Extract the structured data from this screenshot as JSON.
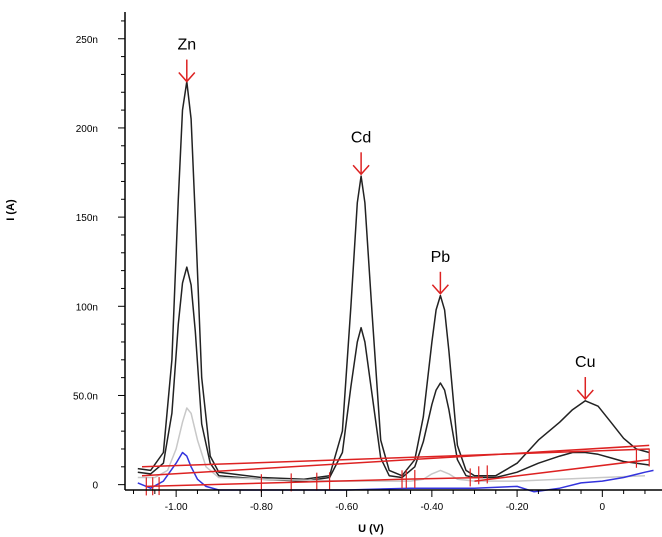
{
  "chart_data": {
    "type": "line",
    "xlabel": "U (V)",
    "ylabel": "I (A)",
    "xlim": [
      -1.12,
      0.14
    ],
    "ylim": [
      -3,
      265
    ],
    "x_ticks": [
      {
        "value": -1.0,
        "label": "-1.00"
      },
      {
        "value": -0.8,
        "label": "-0.80"
      },
      {
        "value": -0.6,
        "label": "-0.60"
      },
      {
        "value": -0.4,
        "label": "-0.40"
      },
      {
        "value": -0.2,
        "label": "-0.20"
      },
      {
        "value": 0.0,
        "label": "0"
      }
    ],
    "y_ticks": [
      {
        "value": 0,
        "label": "0"
      },
      {
        "value": 50,
        "label": "50.0n"
      },
      {
        "value": 100,
        "label": "100n"
      },
      {
        "value": 150,
        "label": "150n"
      },
      {
        "value": 200,
        "label": "200n"
      },
      {
        "value": 250,
        "label": "250n"
      }
    ],
    "grid": false,
    "peaks": [
      {
        "label": "Zn",
        "x": -0.975,
        "y": 226
      },
      {
        "label": "Cd",
        "x": -0.566,
        "y": 174
      },
      {
        "label": "Pb",
        "x": -0.38,
        "y": 107
      },
      {
        "label": "Cu",
        "x": -0.04,
        "y": 48
      }
    ],
    "series": [
      {
        "color": "#222222",
        "x": [
          -1.09,
          -1.06,
          -1.03,
          -1.01,
          -0.995,
          -0.985,
          -0.975,
          -0.965,
          -0.955,
          -0.94,
          -0.92,
          -0.9,
          -0.8,
          -0.7,
          -0.64,
          -0.61,
          -0.59,
          -0.575,
          -0.566,
          -0.557,
          -0.54,
          -0.52,
          -0.5,
          -0.47,
          -0.44,
          -0.42,
          -0.4,
          -0.39,
          -0.38,
          -0.37,
          -0.36,
          -0.34,
          -0.32,
          -0.3,
          -0.25,
          -0.2,
          -0.15,
          -0.1,
          -0.07,
          -0.04,
          -0.01,
          0.02,
          0.05,
          0.08,
          0.11
        ],
        "y": [
          9,
          8,
          18,
          70,
          160,
          210,
          226,
          205,
          150,
          60,
          16,
          7,
          4,
          3,
          5,
          30,
          100,
          158,
          173,
          158,
          95,
          25,
          8,
          5,
          14,
          38,
          80,
          98,
          106,
          98,
          75,
          22,
          8,
          5,
          5,
          12,
          25,
          35,
          42,
          47,
          44,
          35,
          26,
          20,
          18
        ]
      },
      {
        "color": "#222222",
        "x": [
          -1.09,
          -1.06,
          -1.03,
          -1.01,
          -0.995,
          -0.985,
          -0.975,
          -0.965,
          -0.955,
          -0.94,
          -0.92,
          -0.9,
          -0.8,
          -0.7,
          -0.64,
          -0.61,
          -0.59,
          -0.575,
          -0.566,
          -0.557,
          -0.54,
          -0.52,
          -0.5,
          -0.47,
          -0.44,
          -0.42,
          -0.4,
          -0.39,
          -0.38,
          -0.37,
          -0.36,
          -0.34,
          -0.32,
          -0.3,
          -0.25,
          -0.2,
          -0.15,
          -0.1,
          -0.07,
          -0.04,
          -0.01,
          0.02,
          0.05,
          0.08,
          0.11
        ],
        "y": [
          7,
          6,
          12,
          40,
          90,
          113,
          122,
          112,
          86,
          34,
          12,
          5,
          3,
          2,
          4,
          18,
          55,
          80,
          88,
          80,
          50,
          15,
          5,
          4,
          10,
          24,
          45,
          53,
          57,
          53,
          42,
          14,
          5,
          4,
          4,
          7,
          12,
          16,
          18,
          18,
          17,
          15,
          13,
          12,
          11
        ]
      },
      {
        "color": "#c8c8c8",
        "x": [
          -1.09,
          -1.05,
          -1.02,
          -1.0,
          -0.985,
          -0.975,
          -0.965,
          -0.95,
          -0.93,
          -0.9,
          -0.8,
          -0.6,
          -0.45,
          -0.42,
          -0.4,
          -0.38,
          -0.36,
          -0.34,
          -0.3,
          -0.2,
          -0.1,
          0.0,
          0.1
        ],
        "y": [
          4,
          4,
          8,
          20,
          35,
          43,
          40,
          25,
          10,
          4,
          3,
          2,
          2,
          3,
          6,
          8,
          6,
          3,
          2,
          2,
          3,
          4,
          5
        ]
      },
      {
        "color": "#3333dd",
        "x": [
          -1.09,
          -1.06,
          -1.03,
          -1.0,
          -0.985,
          -0.975,
          -0.965,
          -0.95,
          -0.93,
          -0.9,
          -0.8,
          -0.6,
          -0.45,
          -0.3,
          -0.2,
          -0.16,
          -0.1,
          -0.05,
          0.0,
          0.05,
          0.1,
          0.12
        ],
        "y": [
          1,
          -2,
          2,
          12,
          18,
          16,
          10,
          3,
          -1,
          -3,
          -3,
          -3,
          -2,
          -2,
          -1,
          -4,
          -2,
          1,
          2,
          4,
          7,
          8
        ]
      },
      {
        "color": "#dd2222",
        "x": [
          -1.08,
          0.11
        ],
        "y": [
          10,
          20
        ]
      },
      {
        "color": "#dd2222",
        "x": [
          -1.08,
          0.11
        ],
        "y": [
          5,
          22
        ]
      },
      {
        "color": "#dd2222",
        "x": [
          -1.07,
          -0.47
        ],
        "y": [
          -1,
          3
        ]
      },
      {
        "color": "#dd2222",
        "x": [
          -0.47,
          -0.28
        ],
        "y": [
          3,
          4
        ]
      },
      {
        "color": "#dd2222",
        "x": [
          -0.3,
          0.11
        ],
        "y": [
          2,
          14
        ]
      }
    ],
    "markers": [
      -1.07,
      -1.055,
      -1.04,
      -0.8,
      -0.73,
      -0.67,
      -0.64,
      -0.47,
      -0.46,
      -0.44,
      -0.31,
      -0.29,
      -0.27,
      0.08,
      0.11
    ]
  }
}
